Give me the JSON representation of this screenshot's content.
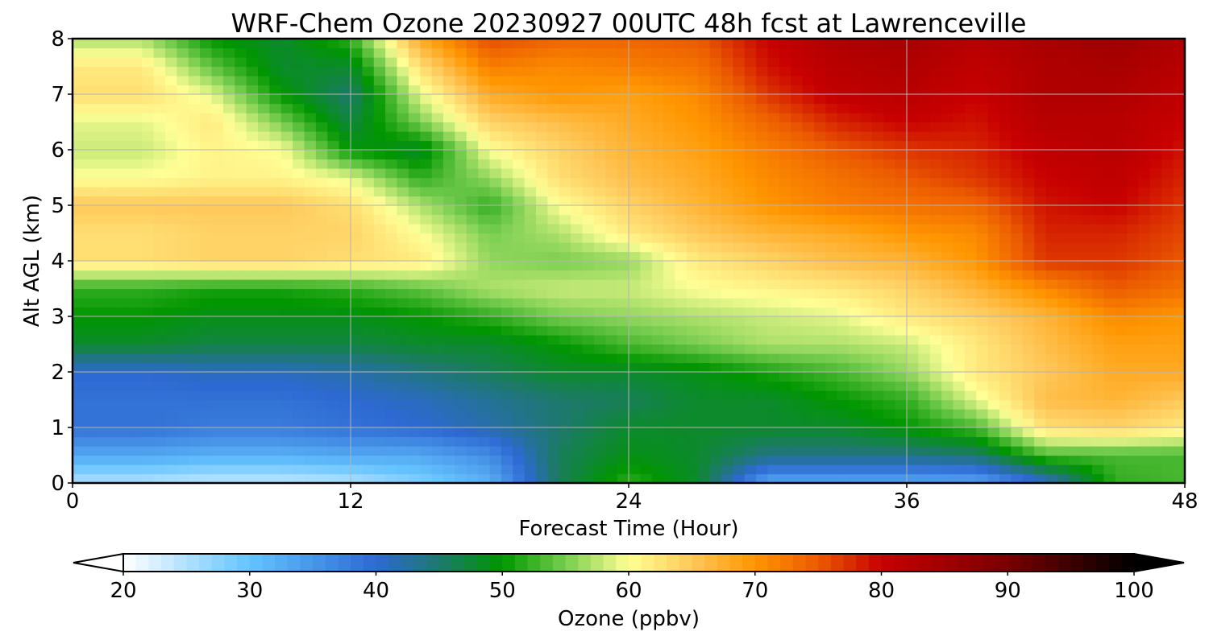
{
  "chart_data": {
    "type": "heatmap",
    "title": "WRF-Chem Ozone  20230927 00UTC 48h fcst at Lawrenceville",
    "xlabel": "Forecast Time (Hour)",
    "ylabel": "Alt AGL (km)",
    "xlim": [
      0,
      48
    ],
    "ylim": [
      0,
      8
    ],
    "xticks": [
      "0",
      "12",
      "24",
      "36",
      "48"
    ],
    "yticks": [
      "0",
      "1",
      "2",
      "3",
      "4",
      "5",
      "6",
      "7",
      "8"
    ],
    "grid": true,
    "colorbar": {
      "label": "Ozone  (ppbv)",
      "min": 20,
      "max": 100,
      "extend": "both",
      "ticks": [
        "20",
        "30",
        "40",
        "50",
        "60",
        "70",
        "80",
        "90",
        "100"
      ]
    },
    "grid_x_hours": [
      0,
      3,
      6,
      9,
      12,
      15,
      18,
      21,
      24,
      27,
      30,
      33,
      36,
      39,
      42,
      45,
      48
    ],
    "grid_y_km": [
      0,
      0.5,
      1,
      1.5,
      2,
      2.5,
      3,
      3.5,
      4,
      4.5,
      5,
      5.5,
      6,
      6.5,
      7,
      7.5,
      8
    ],
    "values": [
      [
        25,
        25,
        24,
        24,
        25,
        28,
        32,
        46,
        52,
        48,
        33,
        33,
        33,
        33,
        40,
        52,
        53
      ],
      [
        33,
        33,
        32,
        32,
        33,
        33,
        36,
        46,
        49,
        48,
        44,
        44,
        44,
        45,
        53,
        53,
        53
      ],
      [
        39,
        39,
        38,
        38,
        39,
        40,
        42,
        45,
        48,
        48,
        48,
        48,
        50,
        53,
        63,
        64,
        62
      ],
      [
        39,
        39,
        39,
        39,
        40,
        41,
        43,
        45,
        46,
        48,
        48,
        50,
        52,
        59,
        66,
        67,
        65
      ],
      [
        40,
        40,
        41,
        41,
        42,
        44,
        46,
        48,
        48,
        49,
        51,
        53,
        56,
        62,
        65,
        68,
        68
      ],
      [
        48,
        48,
        47,
        47,
        47,
        48,
        48,
        50,
        53,
        55,
        57,
        57,
        58,
        62,
        66,
        69,
        69
      ],
      [
        50,
        50,
        49,
        49,
        49,
        50,
        52,
        55,
        56,
        57,
        58,
        59,
        62,
        64,
        67,
        71,
        70
      ],
      [
        52,
        52,
        51,
        51,
        52,
        54,
        57,
        58,
        58,
        60,
        61,
        62,
        64,
        67,
        71,
        75,
        73
      ],
      [
        63,
        63,
        64,
        64,
        63,
        62,
        56,
        55,
        56,
        62,
        64,
        66,
        67,
        70,
        77,
        77,
        75
      ],
      [
        63,
        63,
        64,
        64,
        64,
        60,
        55,
        57,
        62,
        65,
        67,
        68,
        70,
        71,
        78,
        78,
        76
      ],
      [
        65,
        65,
        65,
        65,
        63,
        57,
        52,
        60,
        64,
        67,
        70,
        72,
        73,
        74,
        79,
        80,
        77
      ],
      [
        60,
        60,
        61,
        61,
        59,
        52,
        56,
        63,
        66,
        68,
        71,
        73,
        75,
        77,
        80,
        81,
        78
      ],
      [
        58,
        58,
        61,
        60,
        50,
        48,
        60,
        64,
        67,
        69,
        72,
        75,
        77,
        78,
        81,
        82,
        79
      ],
      [
        59,
        59,
        62,
        55,
        47,
        55,
        64,
        66,
        68,
        70,
        74,
        78,
        80,
        79,
        82,
        82,
        80
      ],
      [
        63,
        63,
        59,
        50,
        45,
        59,
        68,
        70,
        69,
        71,
        77,
        81,
        82,
        80,
        83,
        83,
        81
      ],
      [
        62,
        62,
        54,
        48,
        48,
        63,
        72,
        71,
        72,
        73,
        79,
        82,
        83,
        81,
        83,
        84,
        82
      ],
      [
        57,
        57,
        50,
        48,
        52,
        68,
        76,
        74,
        74,
        75,
        80,
        83,
        84,
        82,
        84,
        85,
        83
      ]
    ]
  }
}
